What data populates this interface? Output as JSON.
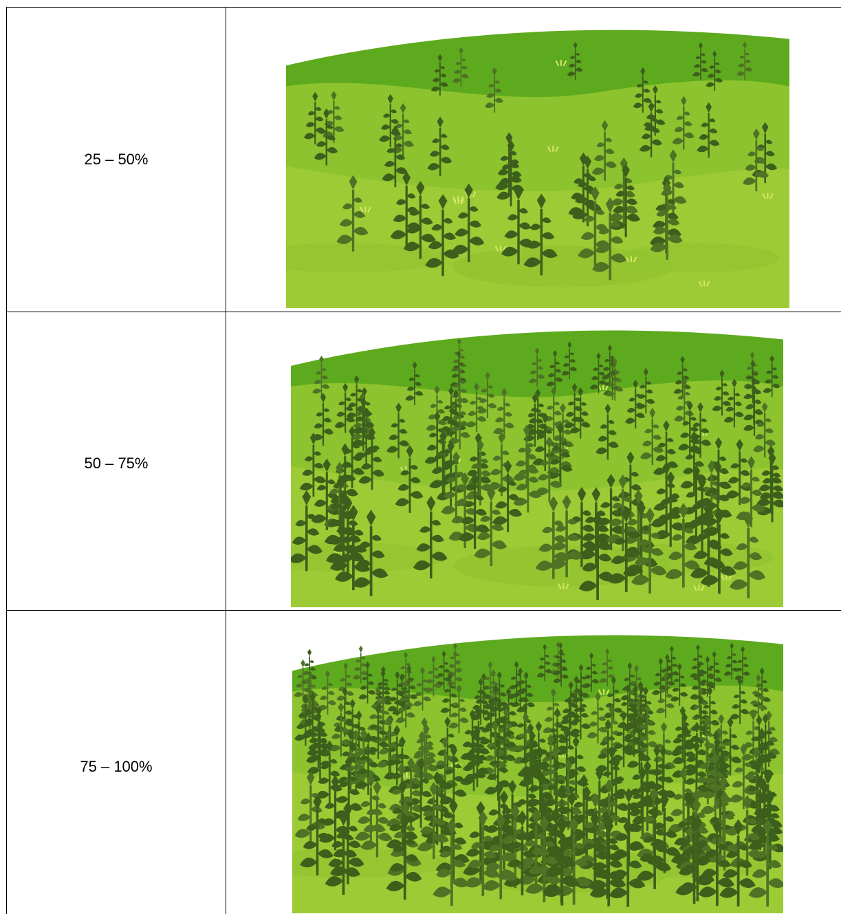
{
  "table": {
    "rows": [
      {
        "label": "25 – 50%",
        "cover_level": "25-50%"
      },
      {
        "label": "50 – 75%",
        "cover_level": "50-75%"
      },
      {
        "label": "75 – 100%",
        "cover_level": "75-100%"
      }
    ]
  },
  "colors": {
    "border": "#000000",
    "hill_dark": "#5eaa1e",
    "hill_mid": "#8cc32e",
    "hill_light": "#9dcb35",
    "plant_dark": "#3d5f1c",
    "plant_mid": "#4e7325"
  }
}
